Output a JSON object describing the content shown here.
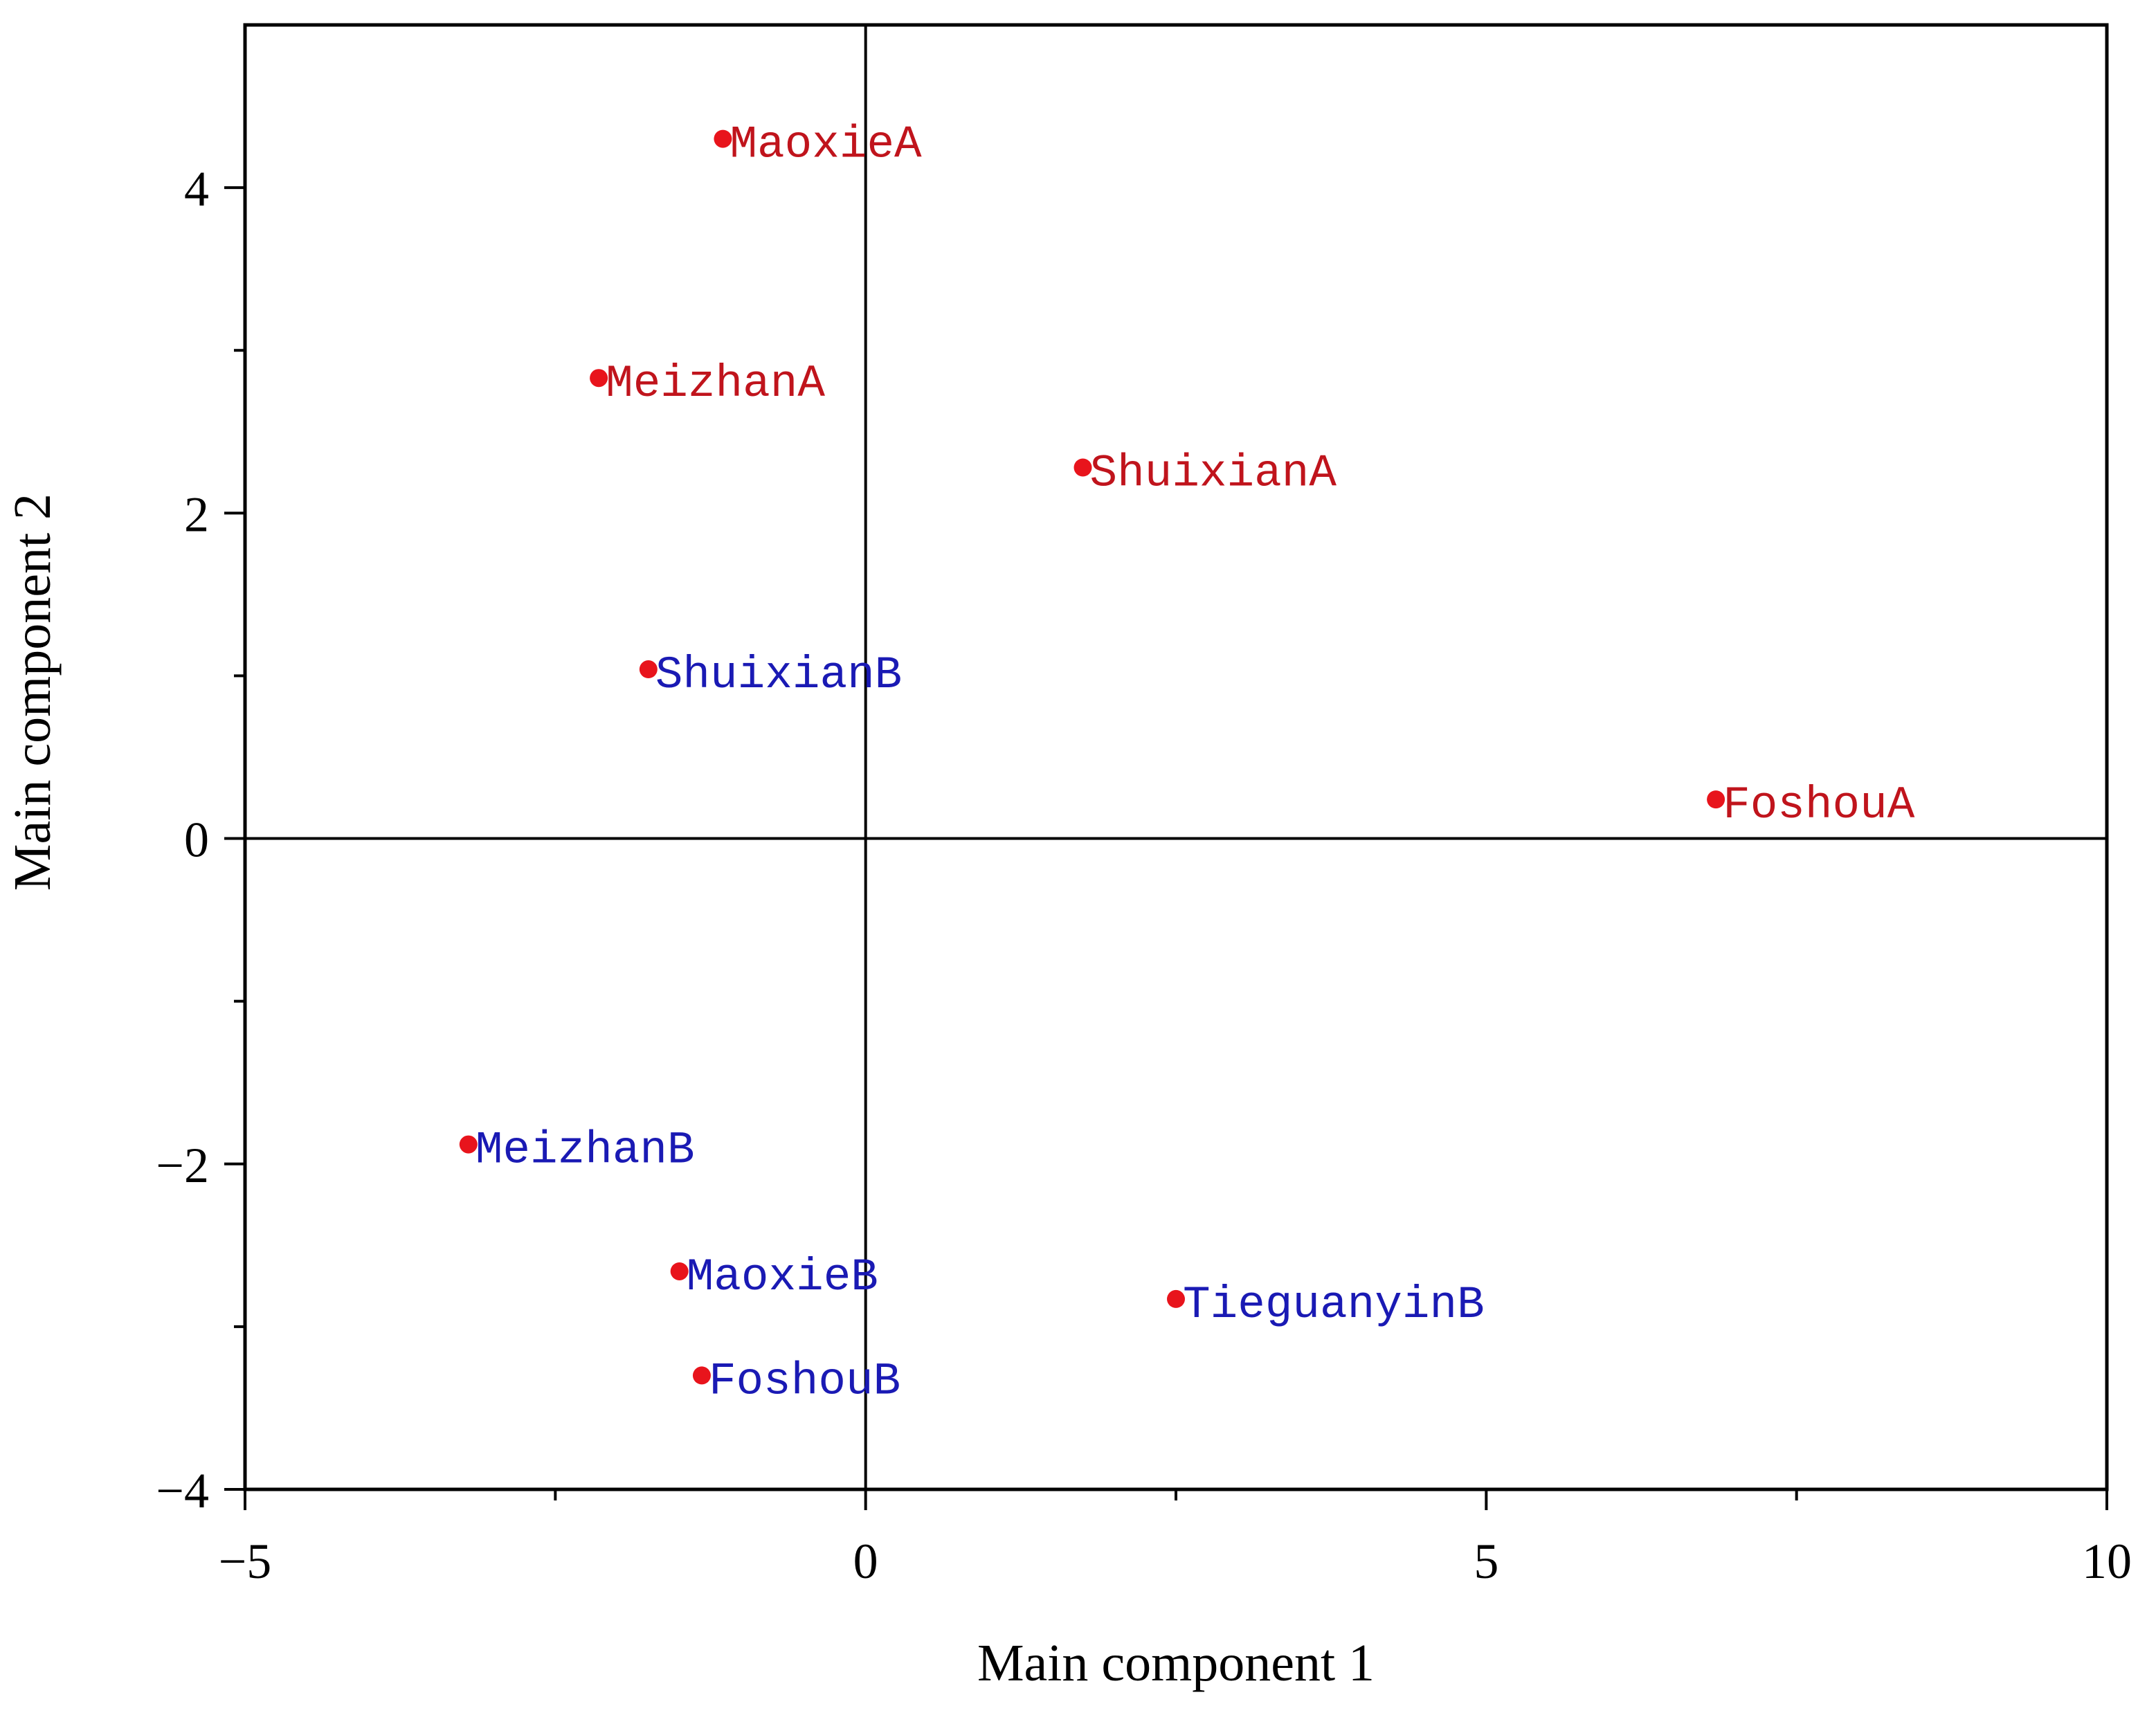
{
  "chart_data": {
    "type": "scatter",
    "title": "",
    "xlabel": "Main component 1",
    "ylabel": "Main component 2",
    "xlim": [
      -5,
      10
    ],
    "ylim": [
      -4,
      5
    ],
    "xticks": [
      -5,
      0,
      5,
      10
    ],
    "xtick_labels": [
      "−5",
      "0",
      "5",
      "10"
    ],
    "xminor": [
      -2.5,
      2.5,
      7.5
    ],
    "yticks": [
      -4,
      -2,
      0,
      2,
      4
    ],
    "ytick_labels": [
      "−4",
      "−2",
      "0",
      "2",
      "4"
    ],
    "yminor": [
      -3,
      -1,
      1,
      3
    ],
    "grid": false,
    "reference_lines": {
      "x": 0,
      "y": 0
    },
    "marker_color": "#e8141c",
    "group_colors": {
      "A": "#c0141c",
      "B": "#1a1ab4"
    },
    "points": [
      {
        "label": "MaoxieA",
        "x": -1.15,
        "y": 4.3,
        "group": "A"
      },
      {
        "label": "MeizhanA",
        "x": -2.15,
        "y": 2.83,
        "group": "A"
      },
      {
        "label": "ShuixianA",
        "x": 1.75,
        "y": 2.28,
        "group": "A"
      },
      {
        "label": "ShuixianB",
        "x": -1.75,
        "y": 1.04,
        "group": "B"
      },
      {
        "label": "FoshouA",
        "x": 6.85,
        "y": 0.24,
        "group": "A"
      },
      {
        "label": "MeizhanB",
        "x": -3.2,
        "y": -1.88,
        "group": "B"
      },
      {
        "label": "MaoxieB",
        "x": -1.5,
        "y": -2.66,
        "group": "B"
      },
      {
        "label": "TieguanyinB",
        "x": 2.5,
        "y": -2.83,
        "group": "B"
      },
      {
        "label": "FoshouB",
        "x": -1.32,
        "y": -3.3,
        "group": "B"
      }
    ]
  }
}
